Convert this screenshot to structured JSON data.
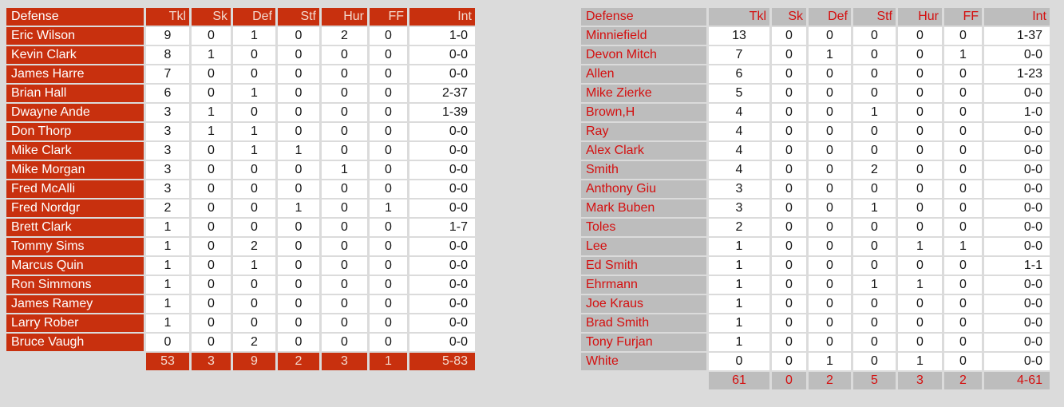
{
  "colors": {
    "page_bg": "#dbdbdb",
    "accent_red": "#c8300e",
    "accent_red_text": "#d40f0f",
    "cell_gray": "#bdbdbd",
    "pale_pink_text": "#f3d9ce",
    "cell_white": "#ffffff",
    "number_text": "#141414"
  },
  "left_table": {
    "columns": [
      "Defense",
      "Tkl",
      "Sk",
      "Def",
      "Stf",
      "Hur",
      "FF",
      "Int"
    ],
    "rows": [
      [
        "Eric Wilson",
        "9",
        "0",
        "1",
        "0",
        "2",
        "0",
        "1-0"
      ],
      [
        "Kevin Clark",
        "8",
        "1",
        "0",
        "0",
        "0",
        "0",
        "0-0"
      ],
      [
        "James Harre",
        "7",
        "0",
        "0",
        "0",
        "0",
        "0",
        "0-0"
      ],
      [
        "Brian Hall",
        "6",
        "0",
        "1",
        "0",
        "0",
        "0",
        "2-37"
      ],
      [
        "Dwayne Ande",
        "3",
        "1",
        "0",
        "0",
        "0",
        "0",
        "1-39"
      ],
      [
        "Don Thorp",
        "3",
        "1",
        "1",
        "0",
        "0",
        "0",
        "0-0"
      ],
      [
        "Mike Clark",
        "3",
        "0",
        "1",
        "1",
        "0",
        "0",
        "0-0"
      ],
      [
        "Mike Morgan",
        "3",
        "0",
        "0",
        "0",
        "1",
        "0",
        "0-0"
      ],
      [
        "Fred McAlli",
        "3",
        "0",
        "0",
        "0",
        "0",
        "0",
        "0-0"
      ],
      [
        "Fred Nordgr",
        "2",
        "0",
        "0",
        "1",
        "0",
        "1",
        "0-0"
      ],
      [
        "Brett Clark",
        "1",
        "0",
        "0",
        "0",
        "0",
        "0",
        "1-7"
      ],
      [
        "Tommy Sims",
        "1",
        "0",
        "2",
        "0",
        "0",
        "0",
        "0-0"
      ],
      [
        "Marcus Quin",
        "1",
        "0",
        "1",
        "0",
        "0",
        "0",
        "0-0"
      ],
      [
        "Ron Simmons",
        "1",
        "0",
        "0",
        "0",
        "0",
        "0",
        "0-0"
      ],
      [
        "James Ramey",
        "1",
        "0",
        "0",
        "0",
        "0",
        "0",
        "0-0"
      ],
      [
        "Larry Rober",
        "1",
        "0",
        "0",
        "0",
        "0",
        "0",
        "0-0"
      ],
      [
        "Bruce Vaugh",
        "0",
        "0",
        "2",
        "0",
        "0",
        "0",
        "0-0"
      ]
    ],
    "totals": [
      "",
      "53",
      "3",
      "9",
      "2",
      "3",
      "1",
      "5-83"
    ]
  },
  "right_table": {
    "columns": [
      "Defense",
      "Tkl",
      "Sk",
      "Def",
      "Stf",
      "Hur",
      "FF",
      "Int"
    ],
    "rows": [
      [
        "Minniefield",
        "13",
        "0",
        "0",
        "0",
        "0",
        "0",
        "1-37"
      ],
      [
        "Devon Mitch",
        "7",
        "0",
        "1",
        "0",
        "0",
        "1",
        "0-0"
      ],
      [
        "Allen",
        "6",
        "0",
        "0",
        "0",
        "0",
        "0",
        "1-23"
      ],
      [
        "Mike Zierke",
        "5",
        "0",
        "0",
        "0",
        "0",
        "0",
        "0-0"
      ],
      [
        "Brown,H",
        "4",
        "0",
        "0",
        "1",
        "0",
        "0",
        "1-0"
      ],
      [
        "Ray",
        "4",
        "0",
        "0",
        "0",
        "0",
        "0",
        "0-0"
      ],
      [
        "Alex Clark",
        "4",
        "0",
        "0",
        "0",
        "0",
        "0",
        "0-0"
      ],
      [
        "Smith",
        "4",
        "0",
        "0",
        "2",
        "0",
        "0",
        "0-0"
      ],
      [
        "Anthony Giu",
        "3",
        "0",
        "0",
        "0",
        "0",
        "0",
        "0-0"
      ],
      [
        "Mark Buben",
        "3",
        "0",
        "0",
        "1",
        "0",
        "0",
        "0-0"
      ],
      [
        "Toles",
        "2",
        "0",
        "0",
        "0",
        "0",
        "0",
        "0-0"
      ],
      [
        "Lee",
        "1",
        "0",
        "0",
        "0",
        "1",
        "1",
        "0-0"
      ],
      [
        "Ed Smith",
        "1",
        "0",
        "0",
        "0",
        "0",
        "0",
        "1-1"
      ],
      [
        "Ehrmann",
        "1",
        "0",
        "0",
        "1",
        "1",
        "0",
        "0-0"
      ],
      [
        "Joe Kraus",
        "1",
        "0",
        "0",
        "0",
        "0",
        "0",
        "0-0"
      ],
      [
        "Brad Smith",
        "1",
        "0",
        "0",
        "0",
        "0",
        "0",
        "0-0"
      ],
      [
        "Tony Furjan",
        "1",
        "0",
        "0",
        "0",
        "0",
        "0",
        "0-0"
      ],
      [
        "White",
        "0",
        "0",
        "1",
        "0",
        "1",
        "0",
        "0-0"
      ]
    ],
    "totals": [
      "",
      "61",
      "0",
      "2",
      "5",
      "3",
      "2",
      "4-61"
    ]
  }
}
